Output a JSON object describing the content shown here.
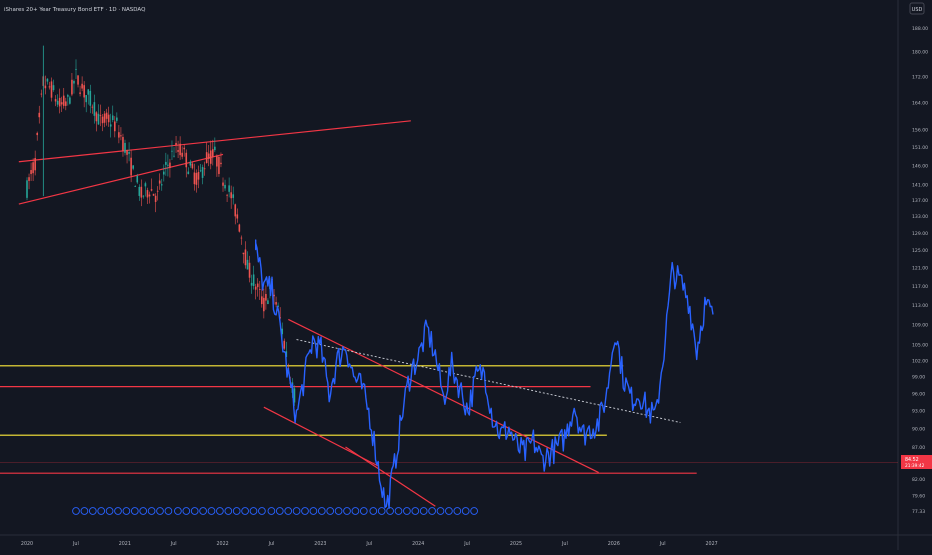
{
  "header": {
    "title": "iShares 20+ Year Treasury Bond ETF · 1D · NASDAQ"
  },
  "currency": "USD",
  "price_tags": {
    "last": "84.52",
    "sub": "21:39:42"
  },
  "colors": {
    "background": "#131722",
    "candle_up": "#26a69a",
    "candle_down": "#ef5350",
    "projection": "#2962ff",
    "trendline": "#f23645",
    "support_yellow": "#ffeb3b",
    "resistance_red": "#f23645",
    "dotted_line": "#d1d4dc"
  },
  "chart_data": {
    "type": "line",
    "title": "iShares 20+ Year Treasury Bond ETF · 1D · NASDAQ",
    "xlabel": "",
    "ylabel": "",
    "x_ticks": [
      "2020",
      "Jul",
      "2021",
      "Jul",
      "2022",
      "Jul",
      "2023",
      "Jul",
      "2024",
      "Jul",
      "2025",
      "Jul",
      "2026",
      "Jul",
      "2027"
    ],
    "y_ticks": [
      "77.33",
      "79.60",
      "82.00",
      "84.00",
      "87.00",
      "90.00",
      "93.00",
      "96.00",
      "99.00",
      "102.00",
      "105.00",
      "109.00",
      "113.00",
      "117.00",
      "121.00",
      "125.00",
      "129.00",
      "133.00",
      "137.00",
      "141.00",
      "146.00",
      "151.00",
      "156.00",
      "164.00",
      "172.00",
      "180.00",
      "188.00"
    ],
    "scale": "log",
    "grid": false,
    "series": [
      {
        "kind": "candles",
        "points": [
          [
            "2020-01",
            140
          ],
          [
            "2020-02",
            147
          ],
          [
            "2020-03",
            170
          ],
          [
            "2020-04",
            168
          ],
          [
            "2020-05",
            163
          ],
          [
            "2020-06",
            164
          ],
          [
            "2020-07",
            172
          ],
          [
            "2020-08",
            167
          ],
          [
            "2020-09",
            164
          ],
          [
            "2020-10",
            158
          ],
          [
            "2020-11",
            159
          ],
          [
            "2020-12",
            157
          ],
          [
            "2021-01",
            151
          ],
          [
            "2021-02",
            144
          ],
          [
            "2021-03",
            138
          ],
          [
            "2021-04",
            140
          ],
          [
            "2021-05",
            138
          ],
          [
            "2021-06",
            145
          ],
          [
            "2021-07",
            150
          ],
          [
            "2021-08",
            150
          ],
          [
            "2021-09",
            145
          ],
          [
            "2021-10",
            142
          ],
          [
            "2021-11",
            148
          ],
          [
            "2021-12",
            149
          ],
          [
            "2022-01",
            143
          ],
          [
            "2022-02",
            138
          ],
          [
            "2022-03",
            131
          ],
          [
            "2022-04",
            121
          ],
          [
            "2022-05",
            117
          ],
          [
            "2022-06",
            113
          ],
          [
            "2022-07",
            117
          ],
          [
            "2022-08",
            110
          ],
          [
            "2022-09",
            101
          ],
          [
            "2022-10",
            94
          ]
        ]
      },
      {
        "kind": "projection",
        "points": [
          [
            "2022-05",
            129
          ],
          [
            "2022-05",
            125
          ],
          [
            "2022-06",
            117
          ],
          [
            "2022-07",
            116
          ],
          [
            "2022-08",
            108
          ],
          [
            "2022-09",
            99
          ],
          [
            "2022-10",
            92
          ],
          [
            "2022-11",
            99
          ],
          [
            "2022-12",
            106
          ],
          [
            "2023-01",
            104
          ],
          [
            "2023-02",
            96
          ],
          [
            "2023-03",
            102
          ],
          [
            "2023-04",
            105
          ],
          [
            "2023-05",
            99
          ],
          [
            "2023-06",
            97
          ],
          [
            "2023-07",
            92
          ],
          [
            "2023-08",
            84
          ],
          [
            "2023-09",
            77.5
          ],
          [
            "2023-10",
            84
          ],
          [
            "2023-11",
            93
          ],
          [
            "2023-12",
            100
          ],
          [
            "2024-01",
            103
          ],
          [
            "2024-02",
            108
          ],
          [
            "2024-03",
            103
          ],
          [
            "2024-04",
            95
          ],
          [
            "2024-05",
            101
          ],
          [
            "2024-06",
            97
          ],
          [
            "2024-07",
            93
          ],
          [
            "2024-08",
            99
          ],
          [
            "2024-09",
            100
          ],
          [
            "2024-10",
            92
          ],
          [
            "2024-11",
            89
          ],
          [
            "2024-12",
            90
          ],
          [
            "2025-01",
            87
          ],
          [
            "2025-02",
            86
          ],
          [
            "2025-03",
            88
          ],
          [
            "2025-04",
            85
          ],
          [
            "2025-05",
            86
          ],
          [
            "2025-06",
            87
          ],
          [
            "2025-07",
            89
          ],
          [
            "2025-08",
            94
          ],
          [
            "2025-09",
            89
          ],
          [
            "2025-10",
            90
          ],
          [
            "2025-11",
            91
          ],
          [
            "2025-12",
            96
          ],
          [
            "2026-01",
            108
          ],
          [
            "2026-02",
            99
          ],
          [
            "2026-03",
            95
          ],
          [
            "2026-04",
            96
          ],
          [
            "2026-05",
            93
          ],
          [
            "2026-06",
            92
          ],
          [
            "2026-07",
            104
          ],
          [
            "2026-08",
            120
          ],
          [
            "2026-09",
            118
          ],
          [
            "2026-10",
            114
          ],
          [
            "2026-11",
            104
          ],
          [
            "2026-12",
            113
          ],
          [
            "2027-01",
            111
          ]
        ]
      }
    ],
    "annotations": {
      "horizontal_lines": [
        {
          "value": 101.0,
          "color": "yellow",
          "x1": "2019-12",
          "x2": "2026-02"
        },
        {
          "value": 97.2,
          "color": "red",
          "x1": "2019-12",
          "x2": "2025-10"
        },
        {
          "value": 88.9,
          "color": "yellow",
          "x1": "2019-12",
          "x2": "2025-12"
        },
        {
          "value": 82.9,
          "color": "red",
          "x1": "2019-12",
          "x2": "2026-11"
        }
      ],
      "trendlines": [
        {
          "from": [
            "2019-12",
            147
          ],
          "to": [
            "2023-12",
            158.5
          ]
        },
        {
          "from": [
            "2019-12",
            136
          ],
          "to": [
            "2022-01",
            149
          ]
        },
        {
          "from": [
            "2022-06",
            93.6
          ],
          "to": [
            "2023-08",
            84
          ]
        },
        {
          "from": [
            "2023-04",
            87
          ],
          "to": [
            "2024-03",
            78
          ]
        },
        {
          "from": [
            "2022-09",
            110
          ],
          "to": [
            "2025-11",
            83
          ]
        }
      ],
      "dotted_lines": [
        {
          "from": [
            "2022-10",
            106
          ],
          "to": [
            "2026-09",
            91
          ]
        }
      ],
      "circles_row": {
        "count": 48
      }
    }
  }
}
